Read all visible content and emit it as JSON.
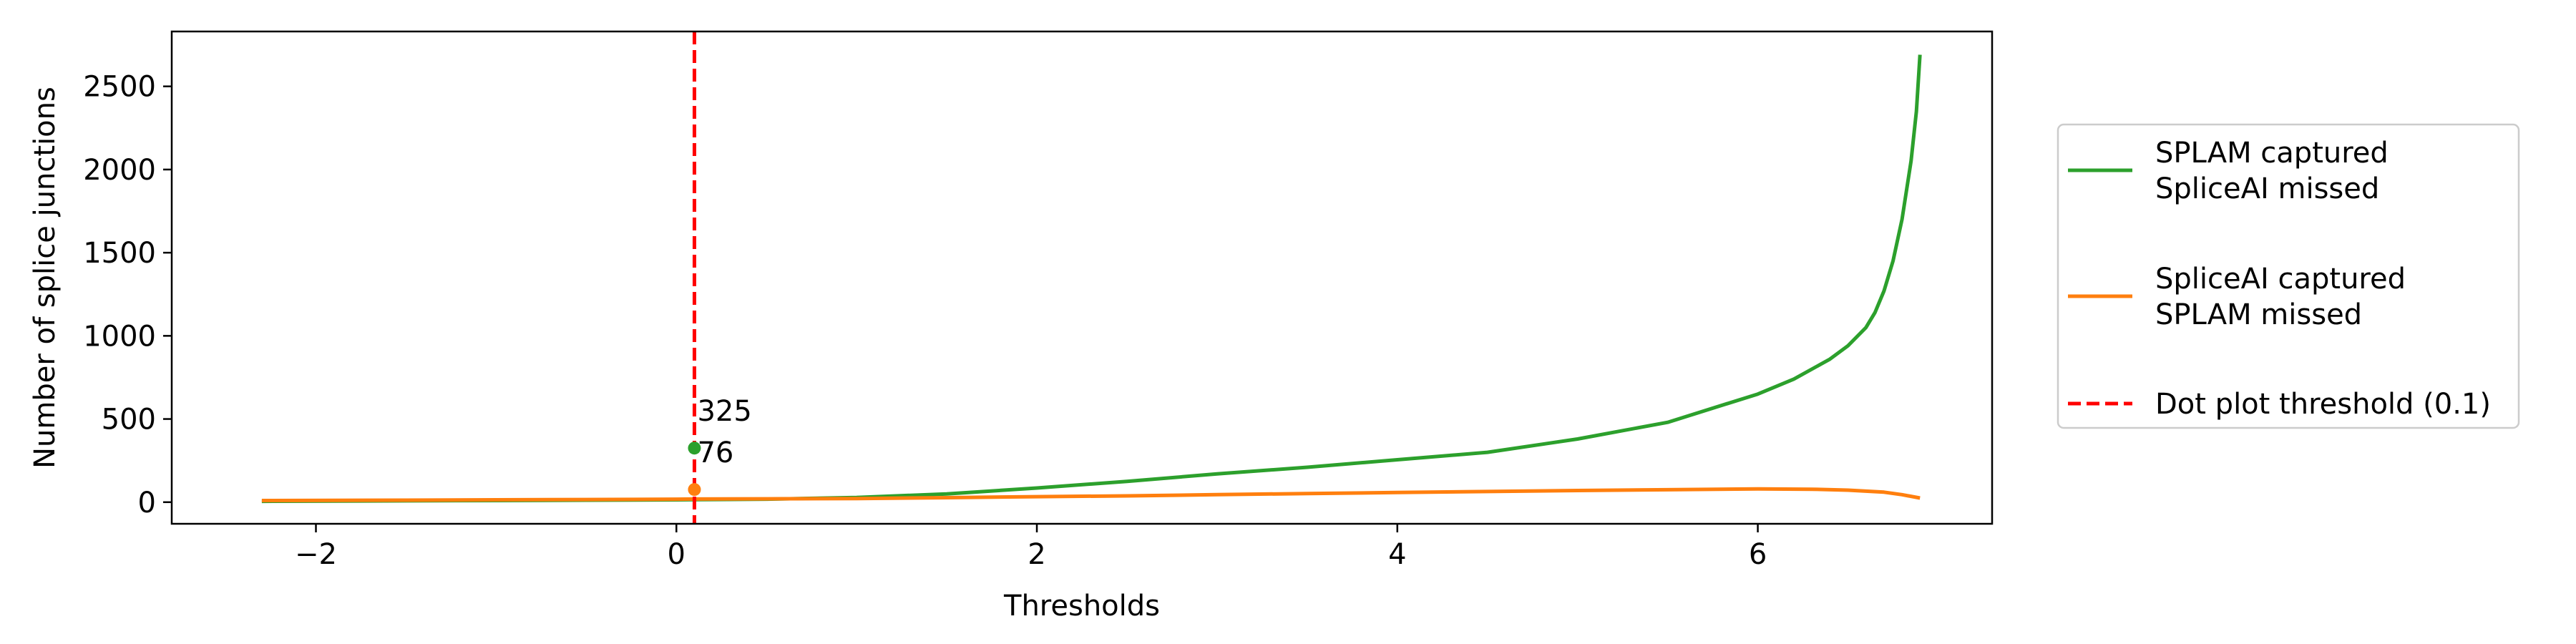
{
  "chart_data": {
    "type": "line",
    "xlabel": "Thresholds",
    "ylabel": "Number of splice junctions",
    "xlim": [
      -2.8,
      7.3
    ],
    "ylim": [
      -130,
      2830
    ],
    "xticks": [
      -2,
      0,
      2,
      4,
      6
    ],
    "yticks": [
      0,
      500,
      1000,
      1500,
      2000,
      2500
    ],
    "grid": false,
    "legend_position": "right-outside",
    "series": [
      {
        "name_lines": [
          "SPLAM captured",
          "SpliceAI missed"
        ],
        "color": "#2ca02c",
        "style": "solid",
        "x": [
          -2.3,
          -1.5,
          -1.0,
          -0.5,
          0.0,
          0.1,
          0.5,
          1.0,
          1.5,
          2.0,
          2.5,
          3.0,
          3.5,
          4.0,
          4.5,
          5.0,
          5.5,
          6.0,
          6.2,
          6.4,
          6.5,
          6.6,
          6.65,
          6.7,
          6.75,
          6.8,
          6.85,
          6.88,
          6.9
        ],
        "y": [
          5,
          8,
          10,
          12,
          14,
          15,
          18,
          28,
          50,
          85,
          125,
          170,
          210,
          255,
          300,
          380,
          480,
          650,
          740,
          860,
          940,
          1050,
          1140,
          1270,
          1450,
          1700,
          2050,
          2350,
          2690
        ]
      },
      {
        "name_lines": [
          "SpliceAI captured",
          "SPLAM missed"
        ],
        "color": "#ff7f0e",
        "style": "solid",
        "x": [
          -2.3,
          -1.5,
          -1.0,
          -0.5,
          0.0,
          0.1,
          0.5,
          1.0,
          1.5,
          2.0,
          2.5,
          3.0,
          3.5,
          4.0,
          4.5,
          5.0,
          5.5,
          6.0,
          6.3,
          6.5,
          6.7,
          6.8,
          6.9
        ],
        "y": [
          10,
          12,
          14,
          16,
          18,
          19,
          20,
          22,
          27,
          33,
          38,
          45,
          52,
          58,
          64,
          70,
          75,
          80,
          78,
          72,
          60,
          45,
          25
        ]
      },
      {
        "name_lines": [
          "Dot plot threshold (0.1)"
        ],
        "color": "#ff0000",
        "style": "dashed",
        "vline_x": 0.1
      }
    ],
    "annotations": [
      {
        "x": 0.1,
        "y": 325,
        "text": "325",
        "color": "#2ca02c"
      },
      {
        "x": 0.1,
        "y": 76,
        "text": "76",
        "color": "#ff7f0e"
      }
    ]
  }
}
